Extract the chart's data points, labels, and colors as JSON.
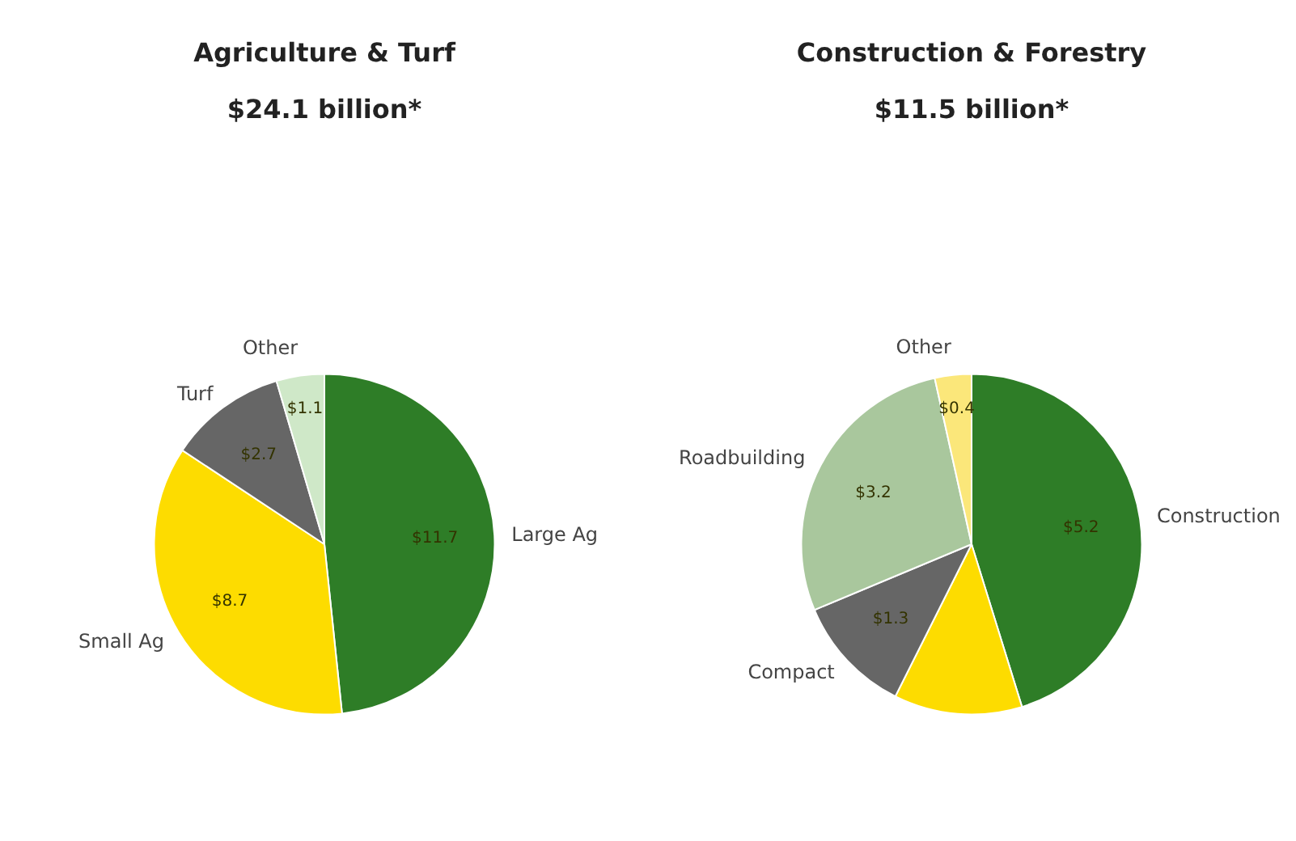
{
  "chart_data": [
    {
      "type": "pie",
      "title": "Agriculture & Turf\n$24.1 billion*",
      "categories": [
        "Large Ag",
        "Small Ag",
        "Turf",
        "Other"
      ],
      "values": [
        11.7,
        8.7,
        2.7,
        1.1
      ],
      "value_labels": [
        "$11.7",
        "$8.7",
        "$2.7",
        "$1.1"
      ],
      "colors": [
        "#2e7d27",
        "#fddc00",
        "#666666",
        "#cfe8c8"
      ]
    },
    {
      "type": "pie",
      "title": "Construction & Forestry\n$11.5 billion*",
      "categories": [
        "Construction",
        null,
        "Compact",
        "Roadbuilding",
        "Other"
      ],
      "values": [
        5.2,
        1.4,
        1.3,
        3.2,
        0.4
      ],
      "value_labels": [
        "$5.2",
        null,
        "$1.3",
        "$3.2",
        "$0.4"
      ],
      "colors": [
        "#2e7d27",
        "#fddc00",
        "#666666",
        "#a9c79d",
        "#fbe77a"
      ]
    }
  ]
}
